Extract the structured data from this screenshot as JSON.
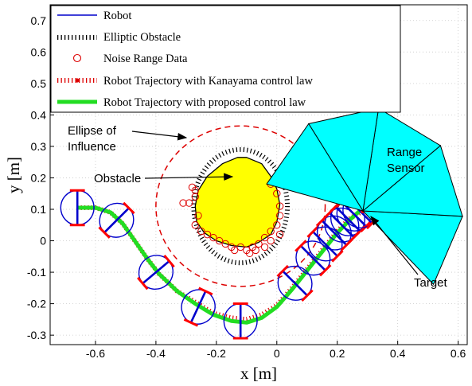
{
  "chart_data": {
    "type": "scatter",
    "xlabel": "x [m]",
    "ylabel": "y [m]",
    "xlim": [
      -0.75,
      0.63
    ],
    "ylim": [
      -0.33,
      0.75
    ],
    "xticks": [
      "-0.6",
      "-0.4",
      "-0.2",
      "0",
      "0.2",
      "0.4",
      "0.6"
    ],
    "yticks": [
      "-0.3",
      "-0.2",
      "-0.1",
      "0",
      "0.1",
      "0.2",
      "0.3",
      "0.4",
      "0.5",
      "0.6",
      "0.7"
    ],
    "grid": true,
    "legend_position": "top-left",
    "legend": [
      "Robot",
      "Elliptic Obstacle",
      "Noise Range Data",
      "Robot Trajectory with Kanayama control law",
      "Robot Trajectory with proposed control law"
    ],
    "annotations": {
      "ellipse_of_influence": [
        "Ellipse of",
        "Influence"
      ],
      "obstacle": "Obstacle",
      "range_sensor": [
        "Range",
        "Sensor"
      ],
      "target": "Target"
    },
    "colors": {
      "robot": "#0000cc",
      "wheel": "#ff0000",
      "influence": "#dd0000",
      "proposed": "#22dd22",
      "kanayama": "#dd0000",
      "obstacle_fill": "#ffff00",
      "sensor_fill": "#00ffff",
      "noise": "#dd0000"
    },
    "obstacle_center": [
      -0.12,
      0.11
    ],
    "influence_ellipse": {
      "cx": -0.12,
      "cy": 0.11,
      "rx": 0.28,
      "ry": 0.255
    },
    "elliptic_obstacle": {
      "cx": -0.12,
      "cy": 0.11,
      "rx": 0.155,
      "ry": 0.18
    },
    "obstacle_boundary": [
      [
        -0.1,
        0.265
      ],
      [
        -0.05,
        0.245
      ],
      [
        -0.02,
        0.205
      ],
      [
        0.0,
        0.165
      ],
      [
        0.01,
        0.115
      ],
      [
        0.0,
        0.06
      ],
      [
        -0.02,
        0.02
      ],
      [
        -0.06,
        -0.005
      ],
      [
        -0.1,
        -0.02
      ],
      [
        -0.15,
        -0.015
      ],
      [
        -0.2,
        0.0
      ],
      [
        -0.24,
        0.025
      ],
      [
        -0.265,
        0.06
      ],
      [
        -0.27,
        0.11
      ],
      [
        -0.26,
        0.16
      ],
      [
        -0.23,
        0.205
      ],
      [
        -0.18,
        0.245
      ],
      [
        -0.13,
        0.265
      ]
    ],
    "noise_points": [
      [
        -0.31,
        0.12
      ],
      [
        -0.29,
        0.12
      ],
      [
        -0.27,
        0.14
      ],
      [
        -0.27,
        0.16
      ],
      [
        -0.26,
        0.08
      ],
      [
        -0.27,
        0.05
      ],
      [
        -0.25,
        0.03
      ],
      [
        -0.23,
        0.02
      ],
      [
        -0.21,
        0.01
      ],
      [
        -0.19,
        0.0
      ],
      [
        -0.17,
        -0.01
      ],
      [
        -0.15,
        -0.02
      ],
      [
        -0.12,
        -0.02
      ],
      [
        -0.1,
        -0.03
      ],
      [
        -0.08,
        -0.02
      ],
      [
        -0.06,
        -0.01
      ],
      [
        -0.04,
        0.01
      ],
      [
        -0.02,
        0.03
      ],
      [
        0.0,
        0.05
      ],
      [
        0.01,
        0.08
      ],
      [
        0.01,
        0.11
      ],
      [
        0.0,
        0.15
      ],
      [
        -0.02,
        0.18
      ],
      [
        -0.09,
        -0.04
      ],
      [
        -0.04,
        -0.02
      ],
      [
        -0.07,
        -0.03
      ],
      [
        -0.14,
        -0.03
      ],
      [
        0.01,
        0.02
      ],
      [
        -0.28,
        0.17
      ],
      [
        -0.02,
        0.0
      ]
    ],
    "proposed_trajectory": [
      [
        -0.66,
        0.105
      ],
      [
        -0.6,
        0.105
      ],
      [
        -0.55,
        0.09
      ],
      [
        -0.51,
        0.055
      ],
      [
        -0.47,
        0.0
      ],
      [
        -0.43,
        -0.055
      ],
      [
        -0.39,
        -0.105
      ],
      [
        -0.33,
        -0.16
      ],
      [
        -0.27,
        -0.2
      ],
      [
        -0.21,
        -0.235
      ],
      [
        -0.15,
        -0.255
      ],
      [
        -0.1,
        -0.26
      ],
      [
        -0.05,
        -0.245
      ],
      [
        0.0,
        -0.21
      ],
      [
        0.05,
        -0.155
      ],
      [
        0.1,
        -0.095
      ],
      [
        0.15,
        -0.035
      ],
      [
        0.2,
        0.025
      ],
      [
        0.24,
        0.065
      ],
      [
        0.28,
        0.1
      ]
    ],
    "kanayama_trajectory": [
      [
        -0.66,
        0.105
      ],
      [
        -0.6,
        0.105
      ],
      [
        -0.55,
        0.09
      ],
      [
        -0.51,
        0.055
      ],
      [
        -0.47,
        0.0
      ],
      [
        -0.43,
        -0.055
      ],
      [
        -0.39,
        -0.105
      ],
      [
        -0.33,
        -0.16
      ],
      [
        -0.27,
        -0.195
      ],
      [
        -0.21,
        -0.23
      ],
      [
        -0.15,
        -0.245
      ],
      [
        -0.1,
        -0.25
      ],
      [
        -0.05,
        -0.235
      ],
      [
        0.0,
        -0.205
      ],
      [
        0.05,
        -0.15
      ],
      [
        0.1,
        -0.09
      ],
      [
        0.15,
        -0.03
      ],
      [
        0.2,
        0.03
      ],
      [
        0.24,
        0.07
      ],
      [
        0.285,
        0.095
      ]
    ],
    "robots": [
      {
        "x": -0.66,
        "y": 0.105,
        "theta": 0
      },
      {
        "x": -0.53,
        "y": 0.065,
        "theta": -45
      },
      {
        "x": -0.4,
        "y": -0.1,
        "theta": -50
      },
      {
        "x": -0.26,
        "y": -0.21,
        "theta": -25
      },
      {
        "x": -0.12,
        "y": -0.255,
        "theta": 0
      },
      {
        "x": 0.06,
        "y": -0.135,
        "theta": 45
      },
      {
        "x": 0.12,
        "y": -0.055,
        "theta": 45
      },
      {
        "x": 0.16,
        "y": -0.01,
        "theta": 45
      },
      {
        "x": 0.19,
        "y": 0.025,
        "theta": 45
      },
      {
        "x": 0.215,
        "y": 0.05,
        "theta": 45
      },
      {
        "x": 0.235,
        "y": 0.07,
        "theta": 45
      },
      {
        "x": 0.255,
        "y": 0.085,
        "theta": 45
      },
      {
        "x": 0.275,
        "y": 0.095,
        "theta": 45
      }
    ],
    "robot_radius": 0.055,
    "target": [
      0.285,
      0.095
    ],
    "sensor": {
      "origin": [
        0.285,
        0.095
      ],
      "range": 0.33,
      "start_deg": -45,
      "end_deg": 165,
      "wedges": 5
    }
  }
}
